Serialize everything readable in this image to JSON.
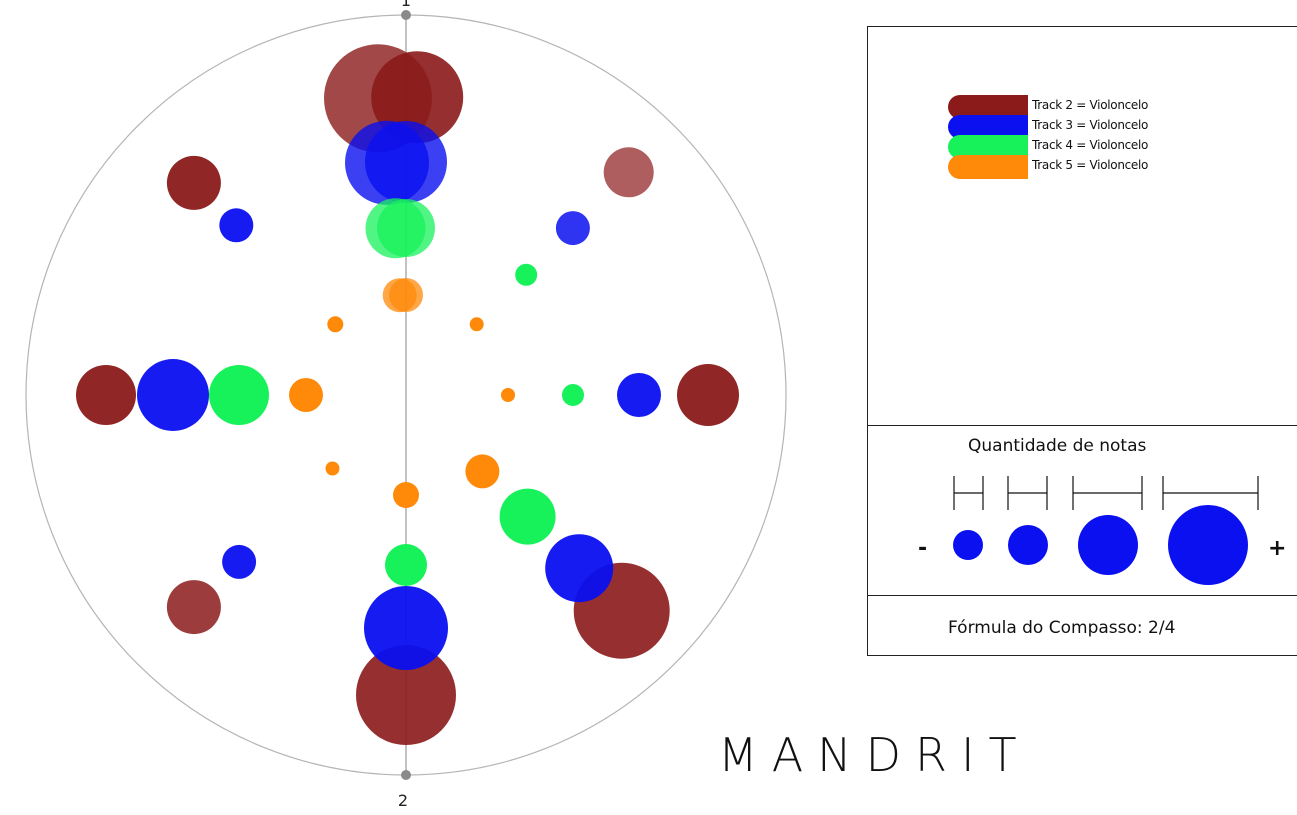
{
  "title": "MANDRIT",
  "axis_labels": {
    "top": "1",
    "bottom": "2"
  },
  "legend": {
    "items": [
      {
        "label": "Track 2 = Violoncelo",
        "color": "#8b1a1a"
      },
      {
        "label": "Track 3 = Violoncelo",
        "color": "#0a10f0"
      },
      {
        "label": "Track 4 = Violoncelo",
        "color": "#17f25a"
      },
      {
        "label": "Track 5 = Violoncelo",
        "color": "#ff8a0a"
      }
    ]
  },
  "quantity": {
    "title": "Quantidade de notas",
    "minus": "-",
    "plus": "+",
    "color": "#0a10f0"
  },
  "formula": {
    "text": "Fórmula do Compasso: 2/4"
  },
  "chart_data": {
    "type": "scatter",
    "description_units": "radial plot; angle = beat position within measure (0-1 around circle), radius order = track",
    "series": [
      {
        "name": "Track 2 = Violoncelo",
        "color": "#8b1a1a",
        "points": [
          {
            "pos": 0.0,
            "size": 5,
            "alpha": 0.8
          },
          {
            "pos": 0.0,
            "size": 4,
            "alpha": 0.9
          },
          {
            "pos": 0.125,
            "size": 2,
            "alpha": 0.7
          },
          {
            "pos": 0.25,
            "size": 3,
            "alpha": 0.95
          },
          {
            "pos": 0.375,
            "size": 5,
            "alpha": 0.9
          },
          {
            "pos": 0.5,
            "size": 5,
            "alpha": 0.9
          },
          {
            "pos": 0.625,
            "size": 3,
            "alpha": 0.85
          },
          {
            "pos": 0.75,
            "size": 4,
            "alpha": 0.95
          },
          {
            "pos": 0.875,
            "size": 3,
            "alpha": 0.95
          }
        ]
      },
      {
        "name": "Track 3 = Violoncelo",
        "color": "#0a10f0",
        "points": [
          {
            "pos": 0.0,
            "size": 4,
            "alpha": 0.8
          },
          {
            "pos": 0.0,
            "size": 4,
            "alpha": 0.8
          },
          {
            "pos": 0.125,
            "size": 2,
            "alpha": 0.85
          },
          {
            "pos": 0.25,
            "size": 2,
            "alpha": 0.95
          },
          {
            "pos": 0.375,
            "size": 4,
            "alpha": 0.95
          },
          {
            "pos": 0.5,
            "size": 4,
            "alpha": 0.95
          },
          {
            "pos": 0.625,
            "size": 2,
            "alpha": 0.95
          },
          {
            "pos": 0.75,
            "size": 4,
            "alpha": 0.95
          },
          {
            "pos": 0.875,
            "size": 2,
            "alpha": 0.95
          }
        ]
      },
      {
        "name": "Track 4 = Violoncelo",
        "color": "#17f25a",
        "points": [
          {
            "pos": 0.0,
            "size": 3,
            "alpha": 0.75
          },
          {
            "pos": 0.0,
            "size": 3,
            "alpha": 0.75
          },
          {
            "pos": 0.125,
            "size": 1,
            "alpha": 1
          },
          {
            "pos": 0.25,
            "size": 1,
            "alpha": 1
          },
          {
            "pos": 0.375,
            "size": 3,
            "alpha": 1
          },
          {
            "pos": 0.5,
            "size": 2,
            "alpha": 1
          },
          {
            "pos": 0.75,
            "size": 3,
            "alpha": 1
          }
        ]
      },
      {
        "name": "Track 5 = Violoncelo",
        "color": "#ff8a0a",
        "points": [
          {
            "pos": 0.0,
            "size": 2,
            "alpha": 0.75
          },
          {
            "pos": 0.0,
            "size": 2,
            "alpha": 0.75
          },
          {
            "pos": 0.125,
            "size": 1,
            "alpha": 1
          },
          {
            "pos": 0.25,
            "size": 1,
            "alpha": 1
          },
          {
            "pos": 0.375,
            "size": 2,
            "alpha": 1
          },
          {
            "pos": 0.5,
            "size": 1,
            "alpha": 1
          },
          {
            "pos": 0.625,
            "size": 1,
            "alpha": 1
          },
          {
            "pos": 0.75,
            "size": 2,
            "alpha": 1
          },
          {
            "pos": 0.875,
            "size": 1,
            "alpha": 1
          }
        ]
      }
    ]
  }
}
